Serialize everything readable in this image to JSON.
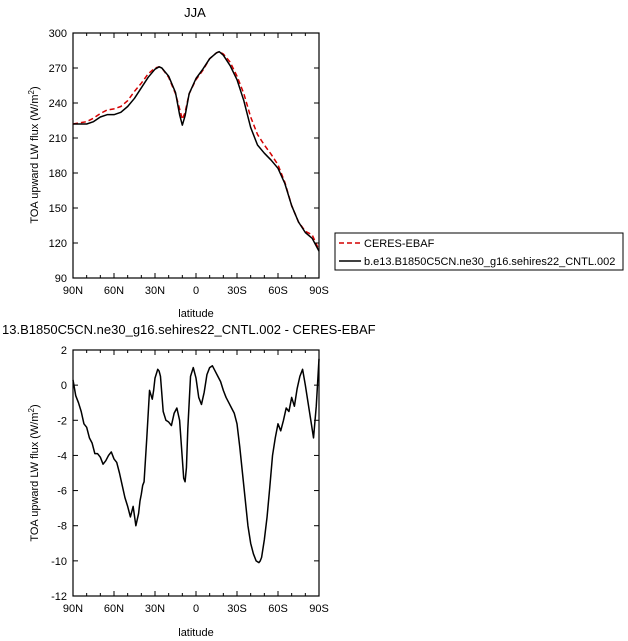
{
  "charts": [
    {
      "type": "line",
      "title": "JJA",
      "xlabel": "latitude",
      "ylabel_main": "TOA upward LW flux (W/m",
      "ylabel_sup": "2",
      "ylabel_close": ")",
      "xlim": [
        -90,
        90
      ],
      "ylim": [
        90,
        300
      ],
      "yticks": [
        90,
        120,
        150,
        180,
        210,
        240,
        270,
        300
      ],
      "xticks": [
        -90,
        -60,
        -30,
        0,
        30,
        60,
        90
      ],
      "xtick_labels": [
        "90N",
        "60N",
        "30N",
        "0",
        "30S",
        "60S",
        "90S"
      ],
      "legend": [
        "CERES-EBAF",
        "b.e13.B1850C5CN.ne30_g16.sehires22_CNTL.002"
      ],
      "series": [
        {
          "name": "CERES-EBAF",
          "color": "#d40000",
          "dash": true,
          "x": [
            -90,
            -80,
            -75,
            -70,
            -65,
            -60,
            -55,
            -50,
            -45,
            -40,
            -35,
            -30,
            -27,
            -25,
            -20,
            -15,
            -12,
            -10,
            -8,
            -5,
            0,
            5,
            10,
            15,
            17,
            20,
            25,
            30,
            35,
            40,
            45,
            50,
            55,
            60,
            65,
            70,
            75,
            80,
            85,
            90
          ],
          "y": [
            222,
            224,
            227,
            231,
            234,
            235,
            237,
            242,
            250,
            257,
            265,
            270,
            271,
            270,
            262,
            248,
            235,
            226,
            232,
            248,
            260,
            268,
            278,
            283,
            284,
            282,
            275,
            263,
            248,
            228,
            213,
            204,
            196,
            187,
            172,
            152,
            138,
            130,
            127,
            114
          ]
        },
        {
          "name": "b.e13.B1850C5CN.ne30_g16.sehires22_CNTL.002",
          "color": "#000000",
          "dash": false,
          "x": [
            -90,
            -80,
            -75,
            -70,
            -65,
            -60,
            -55,
            -50,
            -45,
            -40,
            -35,
            -30,
            -27,
            -25,
            -20,
            -15,
            -12,
            -10,
            -8,
            -5,
            0,
            5,
            10,
            15,
            17,
            20,
            25,
            30,
            35,
            40,
            45,
            50,
            55,
            60,
            65,
            70,
            75,
            80,
            85,
            90
          ],
          "y": [
            222,
            222,
            224,
            228,
            230,
            230,
            232,
            237,
            244,
            253,
            262,
            269,
            271,
            270,
            263,
            249,
            230,
            221,
            229,
            248,
            261,
            269,
            278,
            283,
            284,
            281,
            272,
            260,
            242,
            219,
            204,
            197,
            191,
            184,
            171,
            152,
            138,
            129,
            124,
            113
          ]
        }
      ]
    },
    {
      "type": "line",
      "title": "13.B1850C5CN.ne30_g16.sehires22_CNTL.002 - CERES-EBAF",
      "xlabel": "latitude",
      "ylabel_main": "TOA upward LW flux (W/m",
      "ylabel_sup": "2",
      "ylabel_close": ")",
      "xlim": [
        -90,
        90
      ],
      "ylim": [
        -12,
        2
      ],
      "yticks": [
        -12,
        -10,
        -8,
        -6,
        -4,
        -2,
        0,
        2
      ],
      "xticks": [
        -90,
        -60,
        -30,
        0,
        30,
        60,
        90
      ],
      "xtick_labels": [
        "90N",
        "60N",
        "30N",
        "0",
        "30S",
        "60S",
        "90S"
      ],
      "series": [
        {
          "color": "#000000",
          "dash": false,
          "x": [
            -90,
            -88,
            -86,
            -84,
            -82,
            -80,
            -78,
            -76,
            -74,
            -72,
            -70,
            -68,
            -66,
            -64,
            -62,
            -60,
            -58,
            -56,
            -54,
            -52,
            -50,
            -48,
            -46,
            -44,
            -42,
            -41,
            -40,
            -39,
            -38,
            -36,
            -34,
            -32,
            -31,
            -30,
            -28,
            -27,
            -26,
            -24,
            -22,
            -20,
            -18,
            -16,
            -14,
            -12,
            -10,
            -9,
            -8,
            -7,
            -6,
            -4,
            -2,
            0,
            2,
            4,
            6,
            8,
            10,
            12,
            14,
            16,
            18,
            20,
            22,
            24,
            26,
            28,
            30,
            32,
            34,
            36,
            38,
            40,
            42,
            44,
            46,
            47,
            48,
            50,
            52,
            54,
            56,
            58,
            60,
            62,
            64,
            66,
            68,
            70,
            72,
            74,
            76,
            78,
            80,
            82,
            84,
            86,
            88,
            90
          ],
          "y": [
            0.3,
            -0.6,
            -1.0,
            -1.5,
            -2.2,
            -2.4,
            -3.0,
            -3.3,
            -3.9,
            -3.9,
            -4.1,
            -4.5,
            -4.3,
            -4.0,
            -3.8,
            -4.2,
            -4.4,
            -5.0,
            -5.7,
            -6.4,
            -6.9,
            -7.5,
            -6.9,
            -8.0,
            -7.3,
            -6.6,
            -6.2,
            -5.7,
            -5.5,
            -3.0,
            -0.3,
            -0.8,
            -0.3,
            0.4,
            0.9,
            0.8,
            0.5,
            -1.5,
            -2.0,
            -2.1,
            -2.3,
            -1.6,
            -1.3,
            -2.0,
            -4.2,
            -5.3,
            -5.5,
            -4.7,
            -2.5,
            0.5,
            1.0,
            0.4,
            -0.7,
            -1.1,
            -0.4,
            0.6,
            1.0,
            1.1,
            0.8,
            0.5,
            0.2,
            -0.3,
            -0.7,
            -1.0,
            -1.3,
            -1.6,
            -2.2,
            -3.5,
            -5.0,
            -6.5,
            -8.0,
            -9.0,
            -9.6,
            -10.0,
            -10.1,
            -10.0,
            -9.8,
            -8.8,
            -7.5,
            -5.8,
            -4.0,
            -3.0,
            -2.2,
            -2.6,
            -2.0,
            -1.3,
            -1.5,
            -0.7,
            -1.2,
            -0.2,
            0.5,
            0.9,
            0.0,
            -1.0,
            -2.0,
            -3.0,
            -1.2,
            1.5
          ]
        }
      ]
    }
  ]
}
